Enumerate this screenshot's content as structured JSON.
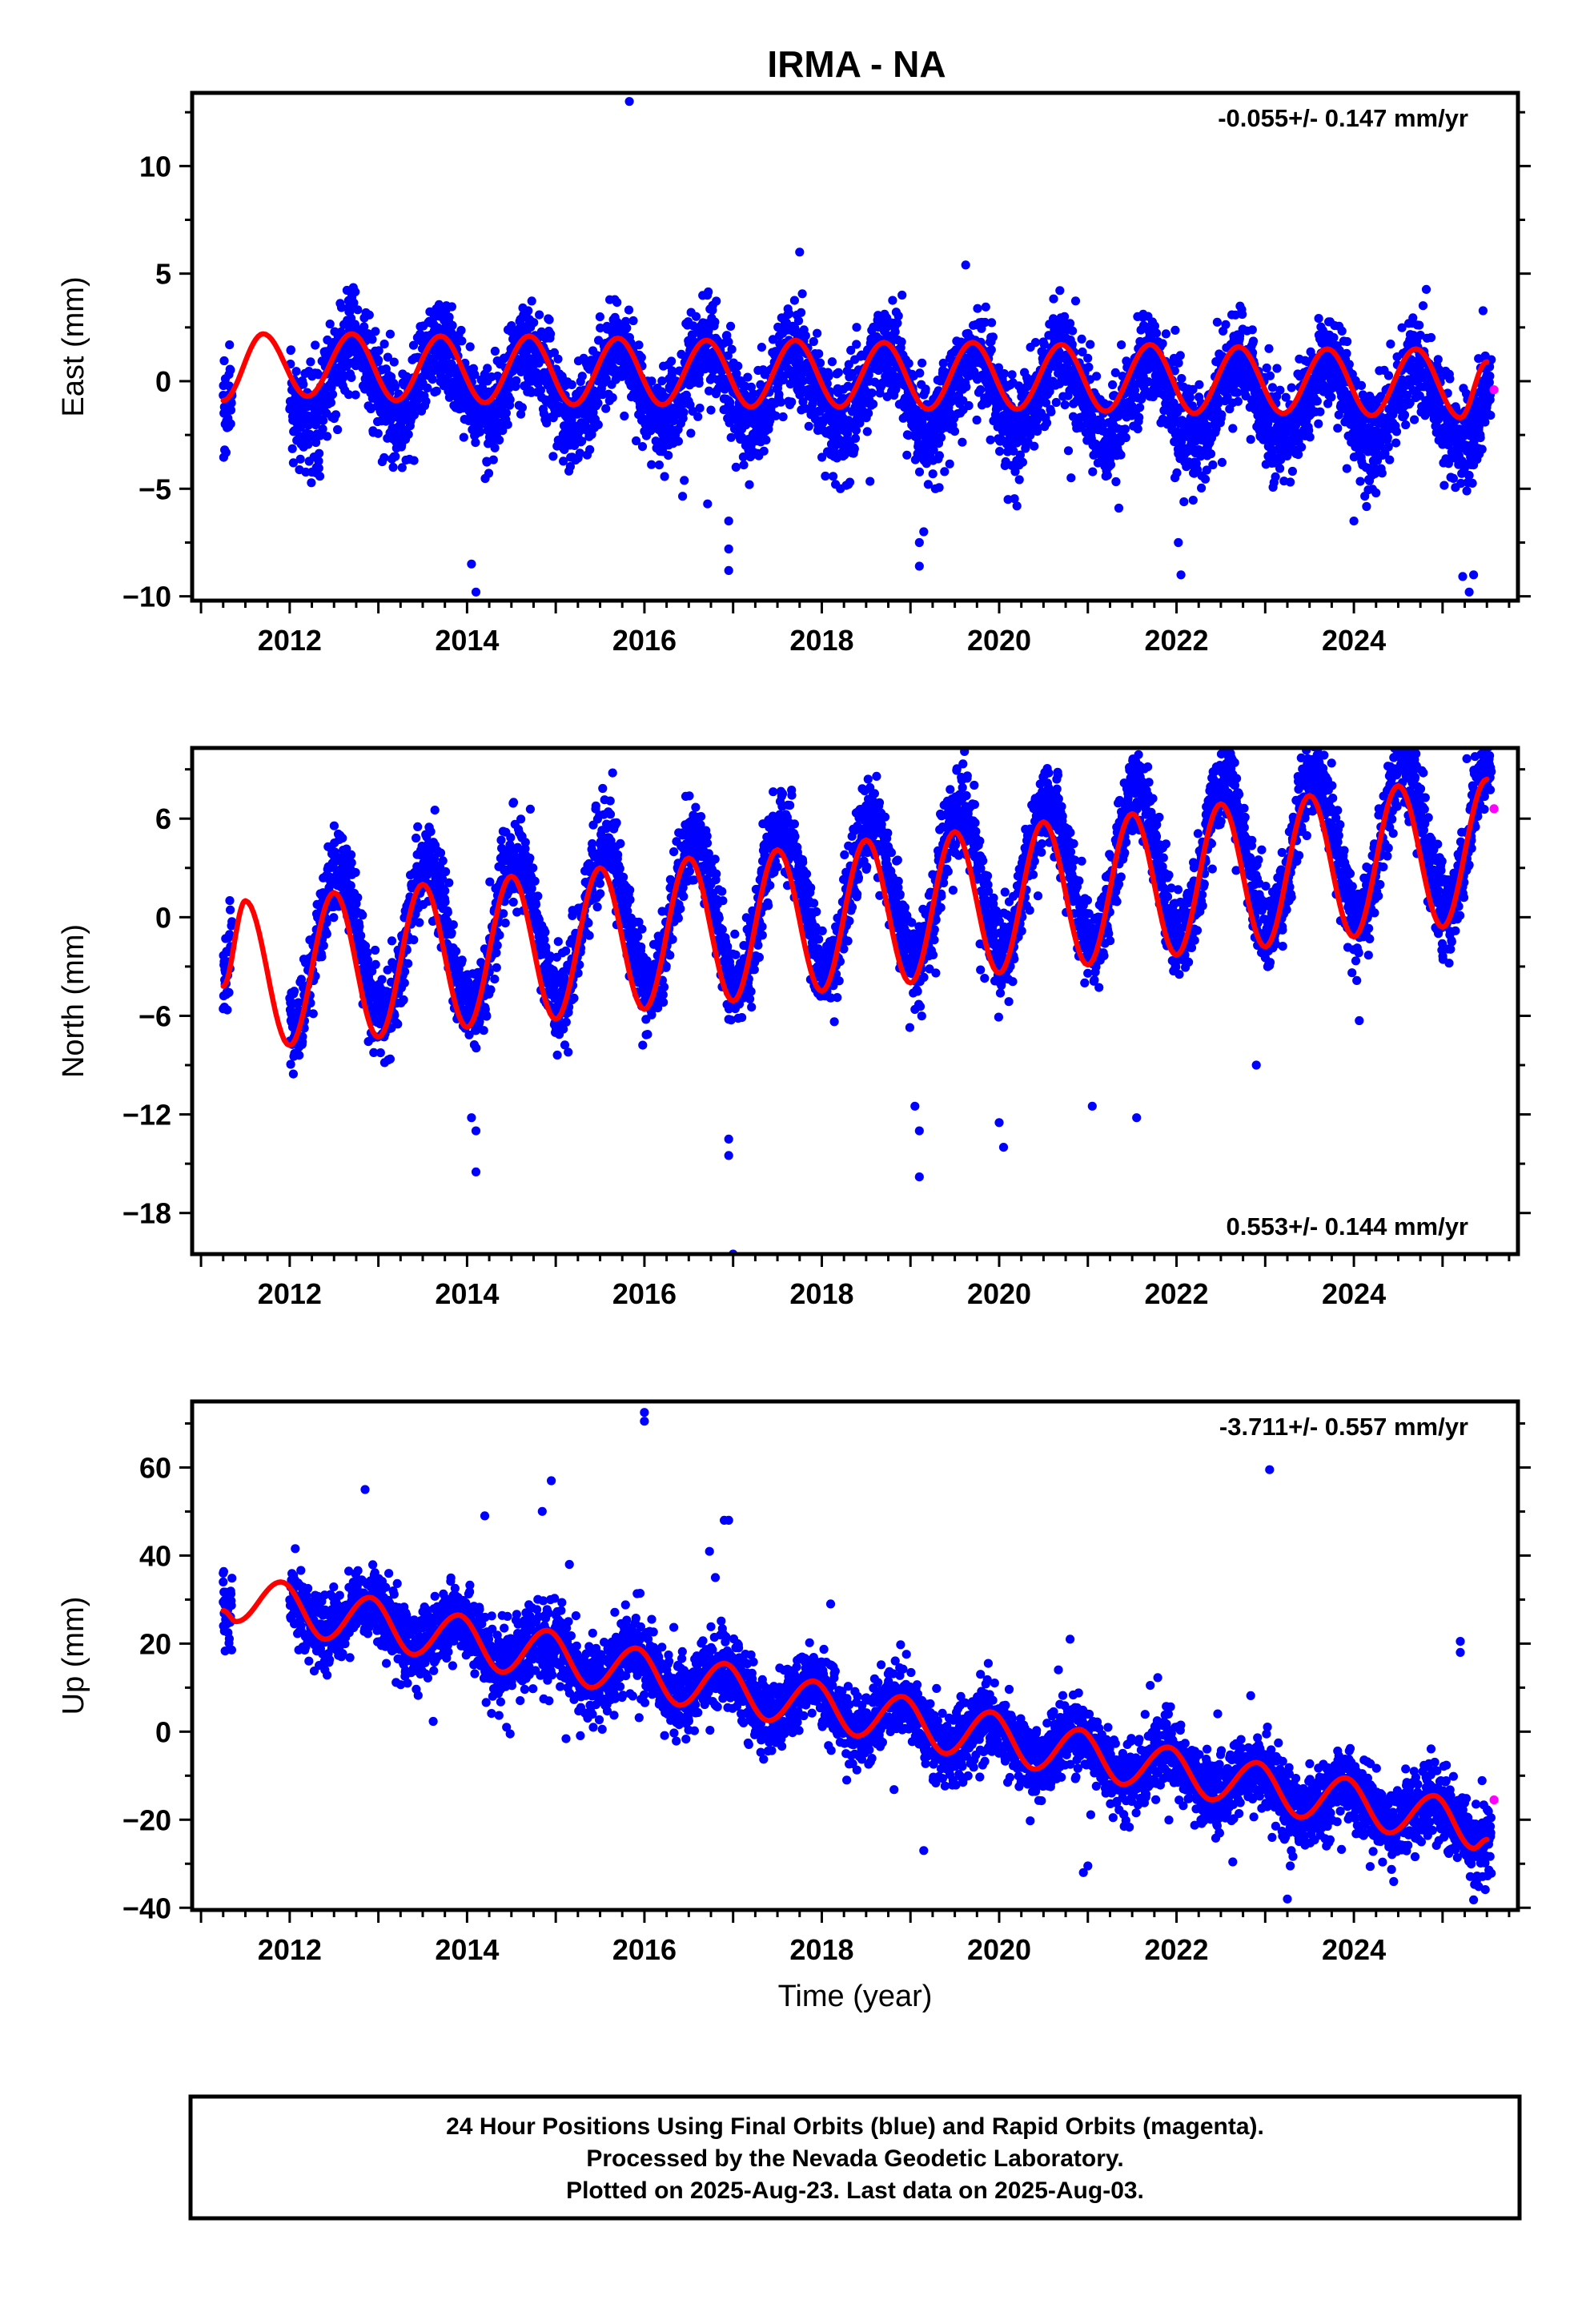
{
  "title": "IRMA - NA",
  "colors": {
    "final": "#0000ff",
    "rapid": "#ff00ff",
    "model": "#ff0000",
    "frame": "#000000"
  },
  "chart_data": [
    {
      "type": "scatter",
      "id": "east",
      "ylabel": "East (mm)",
      "rate_text": "-0.055+/- 0.147 mm/yr",
      "rate_position": "top-right",
      "xlim": [
        2010.9,
        2025.85
      ],
      "ylim": [
        -10.2,
        13.4
      ],
      "yticks": [
        10,
        5,
        0,
        -5,
        -10
      ],
      "ytick_labels": [
        "10",
        "5",
        "0",
        "−5",
        "−10"
      ],
      "xticks": [
        2012,
        2014,
        2016,
        2018,
        2020,
        2022,
        2024
      ],
      "xtick_labels": [
        "2012",
        "2014",
        "2016",
        "2018",
        "2020",
        "2022",
        "2024"
      ],
      "grid": false,
      "series": [
        {
          "role": "final-orbits-scatter",
          "start": 2011.25,
          "end": 2025.55,
          "gap": [
            2011.35,
            2012.0
          ],
          "trend_start": 0.3,
          "trend_rate": -0.1,
          "annual_amplitude": 1.8,
          "annual_phase": 2011.45,
          "noise_sd": 1.1,
          "outliers": [
            [
              2015.83,
              13.0
            ],
            [
              2014.1,
              -9.8
            ],
            [
              2014.05,
              -8.5
            ],
            [
              2016.95,
              -8.8
            ],
            [
              2016.95,
              -7.8
            ],
            [
              2016.95,
              -6.5
            ],
            [
              2019.1,
              -8.6
            ],
            [
              2019.1,
              -7.5
            ],
            [
              2019.15,
              -7.0
            ],
            [
              2022.05,
              -9.0
            ],
            [
              2022.02,
              -7.5
            ],
            [
              2025.3,
              -9.8
            ],
            [
              2025.35,
              -9.0
            ],
            [
              2024.0,
              -6.5
            ],
            [
              2021.35,
              -5.9
            ],
            [
              2017.75,
              6.0
            ],
            [
              2018.3,
              -4.8
            ],
            [
              2019.2,
              -4.8
            ],
            [
              2020.1,
              -5.5
            ],
            [
              2020.2,
              -5.8
            ]
          ]
        },
        {
          "role": "rapid-orbits-scatter",
          "points": [
            [
              2025.58,
              -0.4
            ]
          ]
        },
        {
          "role": "model-curve",
          "start": 2011.25,
          "end": 2025.5,
          "values_at_years": [
            [
              2011.25,
              -0.9
            ],
            [
              2011.7,
              2.2
            ],
            [
              2012.2,
              -0.7
            ],
            [
              2012.7,
              2.2
            ],
            [
              2013.2,
              -0.9
            ],
            [
              2013.7,
              2.1
            ],
            [
              2014.2,
              -1.0
            ],
            [
              2014.7,
              2.1
            ],
            [
              2015.2,
              -1.1
            ],
            [
              2015.7,
              2.0
            ],
            [
              2016.2,
              -1.1
            ],
            [
              2016.7,
              1.9
            ],
            [
              2017.2,
              -1.2
            ],
            [
              2017.7,
              1.9
            ],
            [
              2018.2,
              -1.2
            ],
            [
              2018.7,
              1.8
            ],
            [
              2019.2,
              -1.3
            ],
            [
              2019.7,
              1.8
            ],
            [
              2020.2,
              -1.3
            ],
            [
              2020.7,
              1.7
            ],
            [
              2021.2,
              -1.4
            ],
            [
              2021.7,
              1.7
            ],
            [
              2022.2,
              -1.5
            ],
            [
              2022.7,
              1.6
            ],
            [
              2023.2,
              -1.5
            ],
            [
              2023.7,
              1.5
            ],
            [
              2024.2,
              -1.6
            ],
            [
              2024.7,
              1.5
            ],
            [
              2025.2,
              -1.7
            ],
            [
              2025.5,
              0.9
            ]
          ]
        }
      ]
    },
    {
      "type": "scatter",
      "id": "north",
      "ylabel": "North (mm)",
      "rate_text": "0.553+/- 0.144 mm/yr",
      "rate_position": "bottom-right",
      "xlim": [
        2010.9,
        2025.85
      ],
      "ylim": [
        -20.5,
        10.3
      ],
      "yticks": [
        6,
        0,
        -6,
        -12,
        -18
      ],
      "ytick_labels": [
        "6",
        "0",
        "−6",
        "−12",
        "−18"
      ],
      "xticks": [
        2012,
        2014,
        2016,
        2018,
        2020,
        2022,
        2024
      ],
      "xtick_labels": [
        "2012",
        "2014",
        "2016",
        "2018",
        "2020",
        "2022",
        "2024"
      ],
      "grid": false,
      "series": [
        {
          "role": "final-orbits-scatter",
          "start": 2011.25,
          "end": 2025.55,
          "gap": [
            2011.35,
            2012.0
          ],
          "trend_start": -2.6,
          "trend_rate": 0.553,
          "annual_amplitude": 4.6,
          "annual_phase": 2011.3,
          "noise_sd": 1.3,
          "outliers": [
            [
              2014.1,
              -15.5
            ],
            [
              2014.1,
              -13.0
            ],
            [
              2014.05,
              -12.2
            ],
            [
              2017.0,
              -20.5
            ],
            [
              2016.95,
              -14.5
            ],
            [
              2016.95,
              -13.5
            ],
            [
              2019.1,
              -15.8
            ],
            [
              2019.1,
              -13.0
            ],
            [
              2019.05,
              -11.5
            ],
            [
              2020.05,
              -14.0
            ],
            [
              2020.0,
              -12.5
            ],
            [
              2021.05,
              -11.5
            ],
            [
              2022.9,
              -9.0
            ],
            [
              2021.55,
              -12.2
            ]
          ]
        },
        {
          "role": "rapid-orbits-scatter",
          "points": [
            [
              2025.58,
              6.6
            ]
          ]
        },
        {
          "role": "model-curve",
          "start": 2011.25,
          "end": 2025.5,
          "values_at_years": [
            [
              2011.25,
              -4.2
            ],
            [
              2011.5,
              1.0
            ],
            [
              2012.0,
              -7.8
            ],
            [
              2012.5,
              1.5
            ],
            [
              2013.0,
              -7.3
            ],
            [
              2013.5,
              2.0
            ],
            [
              2014.0,
              -6.7
            ],
            [
              2014.5,
              2.5
            ],
            [
              2015.0,
              -6.2
            ],
            [
              2015.5,
              3.0
            ],
            [
              2016.0,
              -5.6
            ],
            [
              2016.5,
              3.6
            ],
            [
              2017.0,
              -5.1
            ],
            [
              2017.5,
              4.1
            ],
            [
              2018.0,
              -4.5
            ],
            [
              2018.5,
              4.7
            ],
            [
              2019.0,
              -4.0
            ],
            [
              2019.5,
              5.2
            ],
            [
              2020.0,
              -3.4
            ],
            [
              2020.5,
              5.8
            ],
            [
              2021.0,
              -2.9
            ],
            [
              2021.5,
              6.3
            ],
            [
              2022.0,
              -2.3
            ],
            [
              2022.5,
              6.9
            ],
            [
              2023.0,
              -1.8
            ],
            [
              2023.5,
              7.4
            ],
            [
              2024.0,
              -1.2
            ],
            [
              2024.5,
              8.0
            ],
            [
              2025.0,
              -0.6
            ],
            [
              2025.5,
              8.4
            ]
          ]
        }
      ]
    },
    {
      "type": "scatter",
      "id": "up",
      "ylabel": "Up (mm)",
      "rate_text": "-3.711+/- 0.557 mm/yr",
      "rate_position": "top-right",
      "xlim": [
        2010.9,
        2025.85
      ],
      "ylim": [
        -40.5,
        75
      ],
      "yticks": [
        60,
        40,
        20,
        0,
        -20,
        -40
      ],
      "ytick_labels": [
        "60",
        "40",
        "20",
        "0",
        "−20",
        "−40"
      ],
      "xticks": [
        2012,
        2014,
        2016,
        2018,
        2020,
        2022,
        2024
      ],
      "xtick_labels": [
        "2012",
        "2014",
        "2016",
        "2018",
        "2020",
        "2022",
        "2024"
      ],
      "xlabel": "Time (year)",
      "grid": false,
      "series": [
        {
          "role": "final-orbits-scatter",
          "start": 2011.25,
          "end": 2025.55,
          "gap": [
            2011.35,
            2012.0
          ],
          "trend_start": 31.0,
          "trend_rate": -3.711,
          "annual_amplitude": 4.2,
          "annual_phase": 2011.65,
          "noise_sd": 4.2,
          "outliers": [
            [
              2016.0,
              72.5
            ],
            [
              2016.0,
              70.5
            ],
            [
              2023.05,
              59.5
            ],
            [
              2012.85,
              55.0
            ],
            [
              2014.95,
              57.0
            ],
            [
              2014.2,
              49.0
            ],
            [
              2016.9,
              48.0
            ],
            [
              2016.95,
              48.0
            ],
            [
              2016.8,
              35.0
            ],
            [
              2023.25,
              -38.0
            ],
            [
              2020.95,
              -32.0
            ],
            [
              2021.0,
              -30.5
            ],
            [
              2019.15,
              -27.0
            ],
            [
              2025.2,
              20.5
            ],
            [
              2025.2,
              18.0
            ],
            [
              2011.25,
              36.0
            ],
            [
              2011.25,
              34.0
            ],
            [
              2020.8,
              21.0
            ],
            [
              2018.1,
              29.0
            ]
          ]
        },
        {
          "role": "rapid-orbits-scatter",
          "points": [
            [
              2025.58,
              -15.5
            ]
          ]
        },
        {
          "role": "model-curve",
          "start": 2011.25,
          "end": 2025.5,
          "values_at_years": [
            [
              2011.25,
              27.5
            ],
            [
              2011.4,
              25.0
            ],
            [
              2011.9,
              34.0
            ],
            [
              2012.4,
              21.0
            ],
            [
              2012.9,
              30.5
            ],
            [
              2013.4,
              17.5
            ],
            [
              2013.9,
              26.5
            ],
            [
              2014.4,
              13.5
            ],
            [
              2014.9,
              23.0
            ],
            [
              2015.4,
              10.0
            ],
            [
              2015.9,
              19.0
            ],
            [
              2016.4,
              6.0
            ],
            [
              2016.9,
              15.5
            ],
            [
              2017.4,
              2.5
            ],
            [
              2017.9,
              11.5
            ],
            [
              2018.4,
              -1.0
            ],
            [
              2018.9,
              8.0
            ],
            [
              2019.4,
              -5.0
            ],
            [
              2019.9,
              4.5
            ],
            [
              2020.4,
              -8.5
            ],
            [
              2020.9,
              0.5
            ],
            [
              2021.4,
              -12.0
            ],
            [
              2021.9,
              -3.5
            ],
            [
              2022.4,
              -15.5
            ],
            [
              2022.9,
              -7.0
            ],
            [
              2023.4,
              -19.5
            ],
            [
              2023.9,
              -10.5
            ],
            [
              2024.4,
              -23.0
            ],
            [
              2024.9,
              -14.5
            ],
            [
              2025.35,
              -26.5
            ],
            [
              2025.5,
              -24.5
            ]
          ]
        }
      ]
    }
  ],
  "footer": {
    "line1": "24 Hour Positions Using Final Orbits (blue) and Rapid Orbits (magenta).",
    "line2": "Processed by the Nevada Geodetic Laboratory.",
    "line3": "Plotted on 2025-Aug-23. Last data on 2025-Aug-03."
  }
}
